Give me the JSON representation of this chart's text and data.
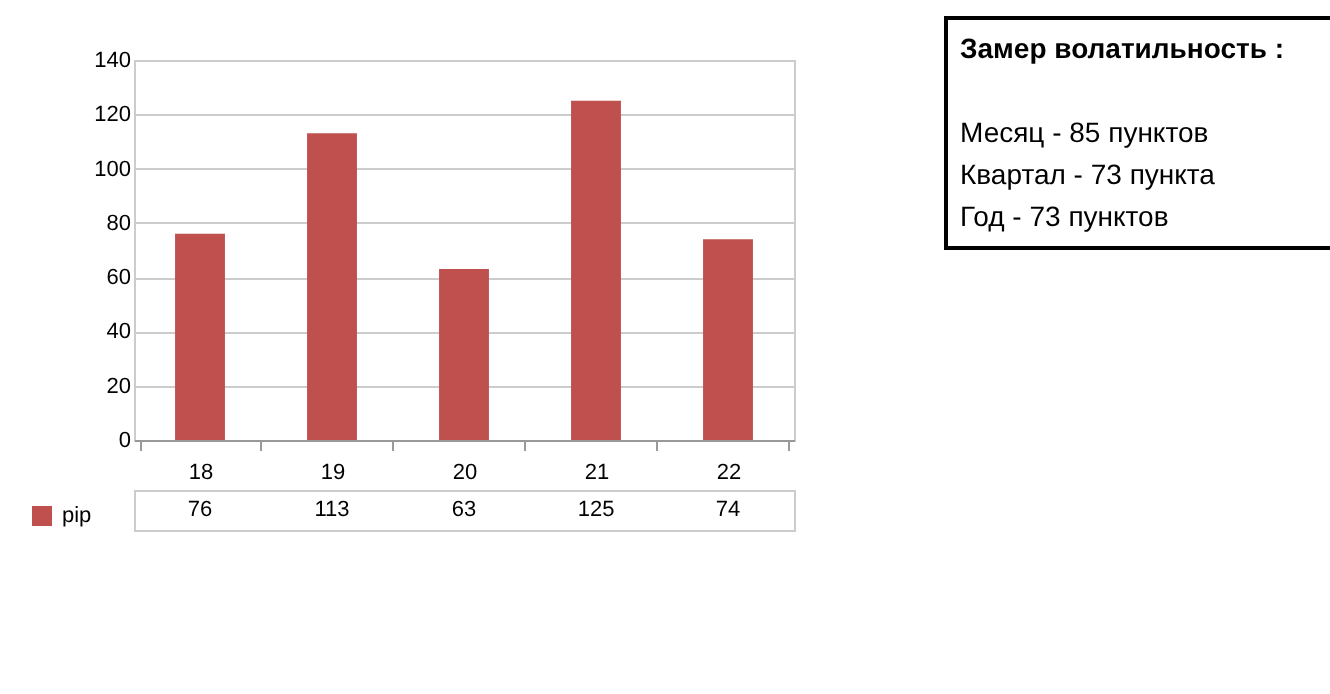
{
  "chart_data": {
    "type": "bar",
    "categories": [
      "18",
      "19",
      "20",
      "21",
      "22"
    ],
    "series": [
      {
        "name": "pip",
        "color": "#c0504d",
        "values": [
          76,
          113,
          63,
          125,
          74
        ]
      }
    ],
    "ylim": [
      0,
      140
    ],
    "yticks": [
      0,
      20,
      40,
      60,
      80,
      100,
      120,
      140
    ],
    "grid": "y",
    "legend": "bottom",
    "data_labels": true,
    "annotations": [
      "Замер  волатильность  :",
      "Месяц - 85 пунктов",
      "Квартал - 73 пункта",
      "Год - 73 пунктов"
    ]
  }
}
